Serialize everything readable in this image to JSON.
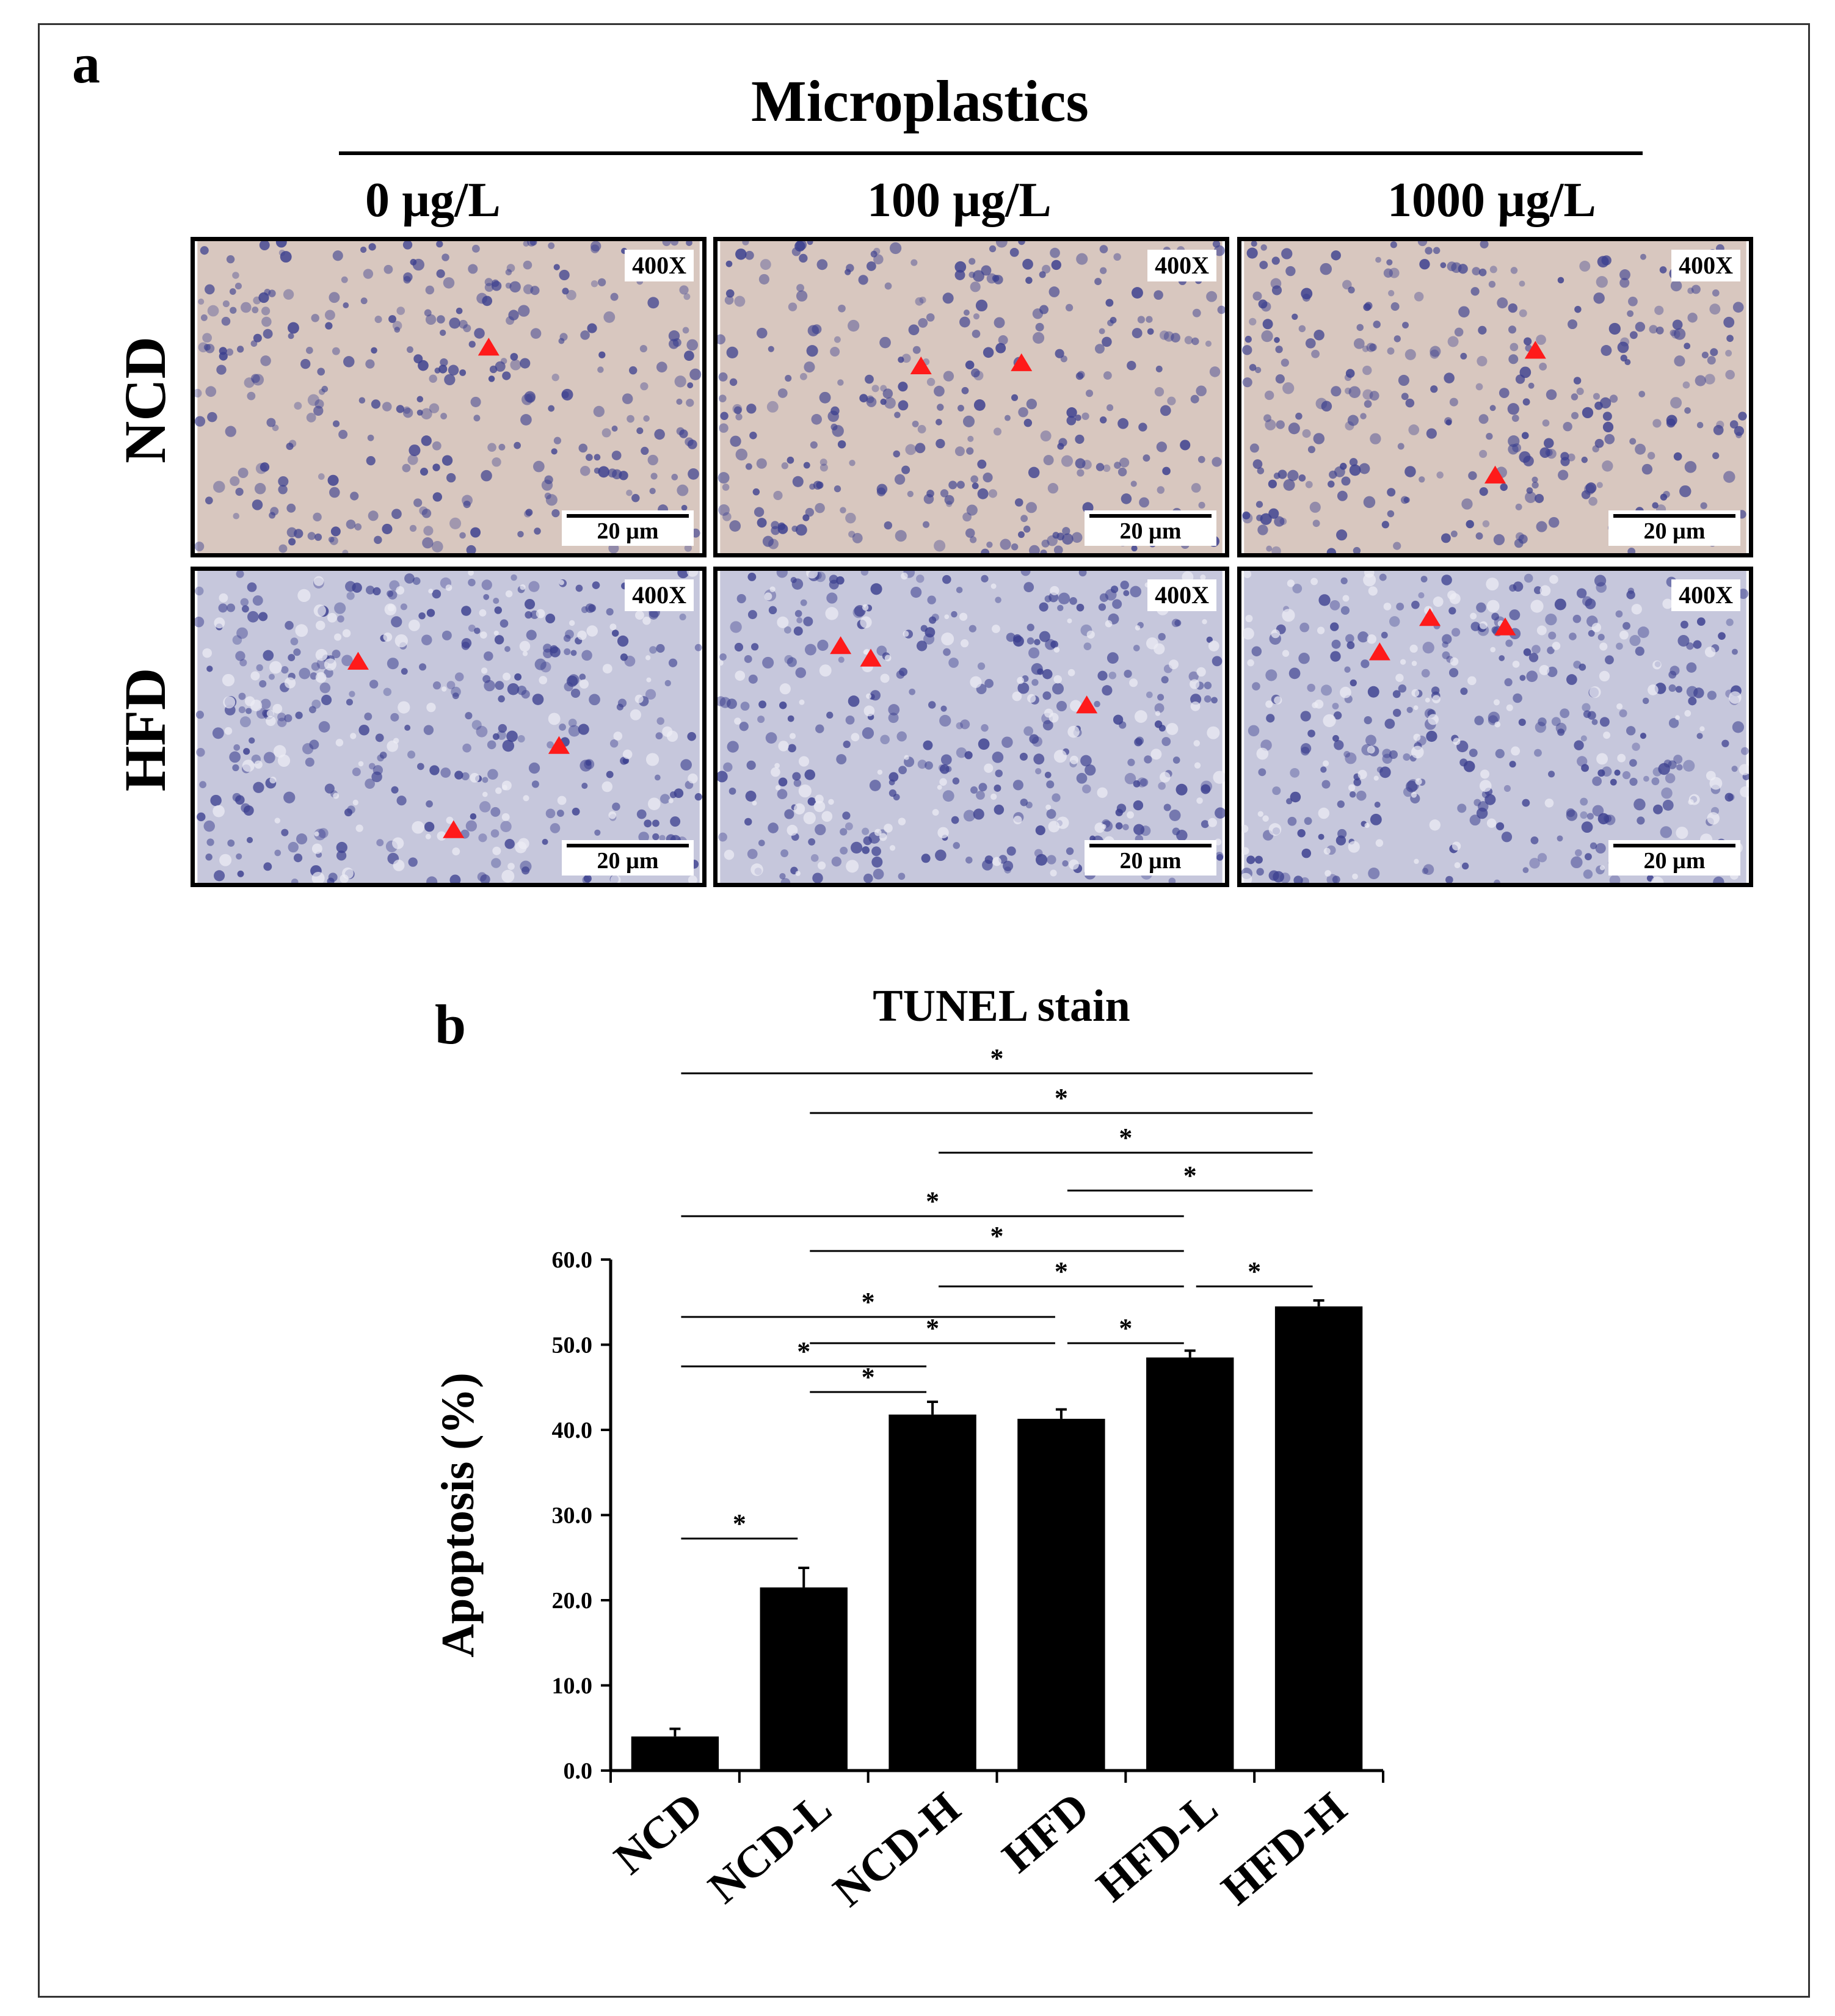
{
  "panel_a": {
    "letter": "a",
    "group_title": "Microplastics",
    "columns": [
      "0 µg/L",
      "100 µg/L",
      "1000 µg/L"
    ],
    "rows": [
      "NCD",
      "HFD"
    ],
    "magnification": "400X",
    "scale_bar": "20 µm",
    "tissue_colors": {
      "ncd_background": "#d8c7bf",
      "hfd_background": "#c6c7dc",
      "nucleus": "#3b3f8f",
      "marker": "#ff1a1a"
    }
  },
  "panel_b": {
    "letter": "b"
  },
  "chart_data": {
    "type": "bar",
    "title": "TUNEL stain",
    "ylabel": "Apoptosis (%)",
    "xlabel": "",
    "categories": [
      "NCD",
      "NCD-L",
      "NCD-H",
      "HFD",
      "HFD-L",
      "HFD-H"
    ],
    "values": [
      4.0,
      21.5,
      41.8,
      41.3,
      48.5,
      54.5
    ],
    "errors": [
      0.9,
      2.3,
      1.5,
      1.1,
      0.8,
      0.7
    ],
    "ylim": [
      0,
      60
    ],
    "yticks": [
      "0.0",
      "10.0",
      "20.0",
      "30.0",
      "40.0",
      "50.0",
      "60.0"
    ],
    "bar_color": "#000000",
    "grid": false,
    "significance_marker": "*",
    "comparisons": [
      {
        "from": "NCD",
        "to": "HFD-H"
      },
      {
        "from": "NCD-L",
        "to": "HFD-H"
      },
      {
        "from": "NCD-H",
        "to": "HFD-H"
      },
      {
        "from": "HFD",
        "to": "HFD-H"
      },
      {
        "from": "NCD",
        "to": "HFD-L"
      },
      {
        "from": "NCD-L",
        "to": "HFD-L"
      },
      {
        "from": "NCD-H",
        "to": "HFD-L"
      },
      {
        "from": "HFD-L",
        "to": "HFD-H"
      },
      {
        "from": "NCD",
        "to": "HFD"
      },
      {
        "from": "NCD-L",
        "to": "HFD"
      },
      {
        "from": "HFD",
        "to": "HFD-L"
      },
      {
        "from": "NCD",
        "to": "NCD-H"
      },
      {
        "from": "NCD-L",
        "to": "NCD-H"
      },
      {
        "from": "NCD",
        "to": "NCD-L"
      }
    ]
  }
}
